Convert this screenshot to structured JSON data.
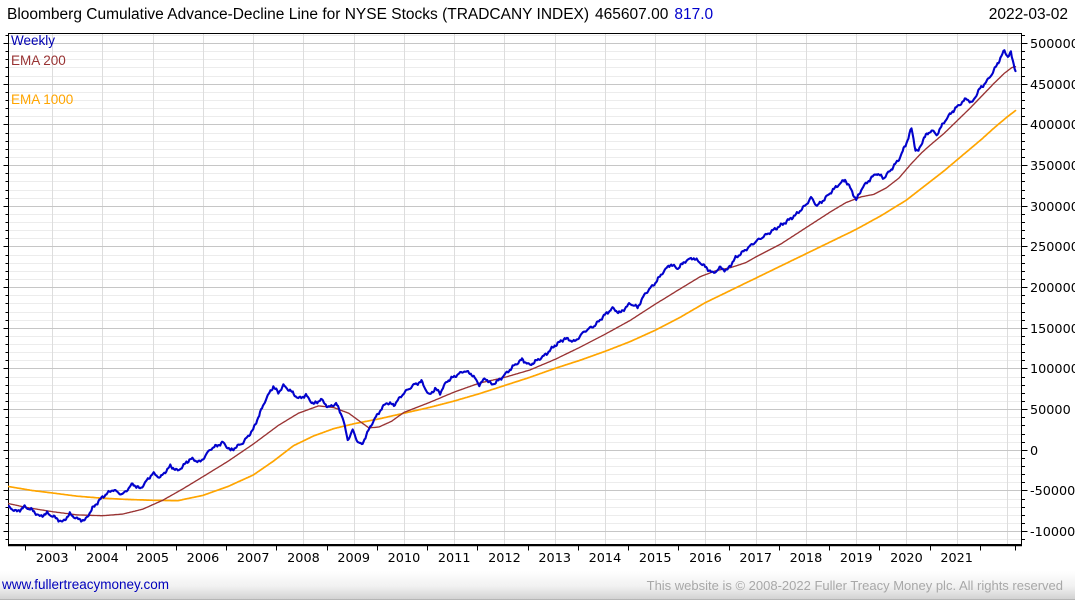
{
  "header": {
    "title": "Bloomberg Cumulative Advance-Decline Line for NYSE Stocks (TRADCANY INDEX)",
    "last_value": "465607.00",
    "change_value": "817.0",
    "date": "2022-03-02"
  },
  "legend": {
    "items": [
      {
        "label": "Weekly",
        "color": "#0000b2"
      },
      {
        "label": "EMA 200",
        "color": "#993333"
      },
      {
        "label": "EMA 1000",
        "color": "#ffa500"
      }
    ]
  },
  "footer": {
    "link": "www.fullertreacymoney.com",
    "copyright": "This website is © 2008-2022 Fuller Treacy Money plc. All rights reserved"
  },
  "chart_data": {
    "type": "line",
    "title": "Bloomberg Cumulative Advance-Decline Line for NYSE Stocks (TRADCANY INDEX)",
    "grid": true,
    "legend_position": "top-left",
    "x_axis": {
      "range": [
        2002.12,
        2022.3
      ],
      "tick_years": [
        2003,
        2004,
        2005,
        2006,
        2007,
        2008,
        2009,
        2010,
        2011,
        2012,
        2013,
        2014,
        2015,
        2016,
        2017,
        2018,
        2019,
        2020,
        2021
      ],
      "gridline_years": [
        2003,
        2004,
        2005,
        2006,
        2007,
        2008,
        2009,
        2010,
        2011,
        2012,
        2013,
        2014,
        2015,
        2016,
        2017,
        2018,
        2019,
        2020,
        2021,
        2022
      ]
    },
    "y_axis": {
      "range": [
        -117000,
        512400
      ],
      "major_step": 50000,
      "minor_step": 10000,
      "labels": [
        500000,
        450000,
        400000,
        350000,
        300000,
        250000,
        200000,
        150000,
        100000,
        50000,
        0,
        -50000,
        -100000
      ]
    },
    "colors": {
      "minor_grid": "#ececec",
      "major_grid": "#c6c6c6",
      "vert_grid": "#dddddd",
      "border": "#000000"
    },
    "series": [
      {
        "name": "EMA 1000",
        "color": "#ffa500",
        "width": 1.7,
        "jitter": 0,
        "points": [
          [
            2002.12,
            -45000
          ],
          [
            2002.6,
            -50000
          ],
          [
            2003.0,
            -53000
          ],
          [
            2003.5,
            -57000
          ],
          [
            2004.0,
            -59500
          ],
          [
            2004.5,
            -61000
          ],
          [
            2005.0,
            -62000
          ],
          [
            2005.5,
            -62500
          ],
          [
            2006.0,
            -56000
          ],
          [
            2006.5,
            -45000
          ],
          [
            2007.0,
            -31000
          ],
          [
            2007.4,
            -14000
          ],
          [
            2007.8,
            5000
          ],
          [
            2008.2,
            17000
          ],
          [
            2008.6,
            26000
          ],
          [
            2009.0,
            32000
          ],
          [
            2009.5,
            38000
          ],
          [
            2010.0,
            45000
          ],
          [
            2010.5,
            52000
          ],
          [
            2011.0,
            60000
          ],
          [
            2011.5,
            69000
          ],
          [
            2012.0,
            79000
          ],
          [
            2012.5,
            89000
          ],
          [
            2013.0,
            100000
          ],
          [
            2013.5,
            110000
          ],
          [
            2014.0,
            121000
          ],
          [
            2014.5,
            133000
          ],
          [
            2015.0,
            147000
          ],
          [
            2015.5,
            163000
          ],
          [
            2016.0,
            181000
          ],
          [
            2016.5,
            196000
          ],
          [
            2017.0,
            211000
          ],
          [
            2017.5,
            226000
          ],
          [
            2018.0,
            241000
          ],
          [
            2018.5,
            256000
          ],
          [
            2019.0,
            271000
          ],
          [
            2019.5,
            288000
          ],
          [
            2020.0,
            307000
          ],
          [
            2020.25,
            319000
          ],
          [
            2020.5,
            331000
          ],
          [
            2020.75,
            343000
          ],
          [
            2021.0,
            356000
          ],
          [
            2021.25,
            369000
          ],
          [
            2021.5,
            382000
          ],
          [
            2021.75,
            396000
          ],
          [
            2022.0,
            409000
          ],
          [
            2022.17,
            417000
          ]
        ]
      },
      {
        "name": "EMA 200",
        "color": "#993333",
        "width": 1.35,
        "jitter": 0,
        "points": [
          [
            2002.12,
            -66000
          ],
          [
            2002.5,
            -71000
          ],
          [
            2003.0,
            -76000
          ],
          [
            2003.5,
            -80000
          ],
          [
            2004.0,
            -81000
          ],
          [
            2004.4,
            -79000
          ],
          [
            2004.8,
            -73000
          ],
          [
            2005.2,
            -62000
          ],
          [
            2005.6,
            -48000
          ],
          [
            2006.0,
            -33000
          ],
          [
            2006.5,
            -14000
          ],
          [
            2007.0,
            7000
          ],
          [
            2007.5,
            30000
          ],
          [
            2007.9,
            45000
          ],
          [
            2008.3,
            54000
          ],
          [
            2008.6,
            52000
          ],
          [
            2008.9,
            45000
          ],
          [
            2009.1,
            36000
          ],
          [
            2009.3,
            27000
          ],
          [
            2009.5,
            28000
          ],
          [
            2009.75,
            35000
          ],
          [
            2010.0,
            46000
          ],
          [
            2010.5,
            58000
          ],
          [
            2011.0,
            71000
          ],
          [
            2011.5,
            82000
          ],
          [
            2012.0,
            89000
          ],
          [
            2012.5,
            98000
          ],
          [
            2013.0,
            111000
          ],
          [
            2013.5,
            126000
          ],
          [
            2014.0,
            142000
          ],
          [
            2014.5,
            159000
          ],
          [
            2015.0,
            179000
          ],
          [
            2015.5,
            198000
          ],
          [
            2015.9,
            213000
          ],
          [
            2016.2,
            220000
          ],
          [
            2016.5,
            224000
          ],
          [
            2016.8,
            230000
          ],
          [
            2017.0,
            237000
          ],
          [
            2017.5,
            253000
          ],
          [
            2018.0,
            273000
          ],
          [
            2018.5,
            293000
          ],
          [
            2018.8,
            304000
          ],
          [
            2019.1,
            311000
          ],
          [
            2019.35,
            314000
          ],
          [
            2019.6,
            322000
          ],
          [
            2019.85,
            334000
          ],
          [
            2020.1,
            352000
          ],
          [
            2020.3,
            365000
          ],
          [
            2020.5,
            376000
          ],
          [
            2020.75,
            389000
          ],
          [
            2021.0,
            404000
          ],
          [
            2021.25,
            419000
          ],
          [
            2021.5,
            435000
          ],
          [
            2021.75,
            451000
          ],
          [
            2021.95,
            463000
          ],
          [
            2022.1,
            470000
          ],
          [
            2022.17,
            471000
          ]
        ]
      },
      {
        "name": "Weekly",
        "color": "#0202cc",
        "width": 2.1,
        "jitter": 1,
        "points": [
          [
            2002.12,
            -70000
          ],
          [
            2002.3,
            -76000
          ],
          [
            2002.45,
            -70000
          ],
          [
            2002.6,
            -74000
          ],
          [
            2002.75,
            -82000
          ],
          [
            2002.9,
            -78000
          ],
          [
            2003.05,
            -83000
          ],
          [
            2003.2,
            -89000
          ],
          [
            2003.35,
            -79000
          ],
          [
            2003.5,
            -85000
          ],
          [
            2003.65,
            -87000
          ],
          [
            2003.8,
            -72000
          ],
          [
            2004.0,
            -58000
          ],
          [
            2004.2,
            -49000
          ],
          [
            2004.4,
            -55000
          ],
          [
            2004.6,
            -42000
          ],
          [
            2004.75,
            -48000
          ],
          [
            2005.0,
            -29000
          ],
          [
            2005.15,
            -34000
          ],
          [
            2005.35,
            -20000
          ],
          [
            2005.5,
            -26000
          ],
          [
            2005.75,
            -11000
          ],
          [
            2005.95,
            -15000
          ],
          [
            2006.15,
            1000
          ],
          [
            2006.4,
            9000
          ],
          [
            2006.55,
            -1000
          ],
          [
            2006.8,
            9000
          ],
          [
            2007.0,
            25000
          ],
          [
            2007.1,
            40000
          ],
          [
            2007.25,
            62000
          ],
          [
            2007.4,
            78000
          ],
          [
            2007.5,
            70000
          ],
          [
            2007.6,
            79000
          ],
          [
            2007.75,
            72000
          ],
          [
            2007.9,
            63000
          ],
          [
            2008.05,
            67000
          ],
          [
            2008.2,
            56000
          ],
          [
            2008.35,
            62000
          ],
          [
            2008.5,
            52000
          ],
          [
            2008.65,
            57000
          ],
          [
            2008.78,
            40000
          ],
          [
            2008.88,
            12000
          ],
          [
            2008.98,
            24000
          ],
          [
            2009.08,
            10000
          ],
          [
            2009.16,
            6000
          ],
          [
            2009.25,
            18000
          ],
          [
            2009.35,
            31000
          ],
          [
            2009.5,
            46000
          ],
          [
            2009.65,
            58000
          ],
          [
            2009.8,
            55000
          ],
          [
            2010.0,
            70000
          ],
          [
            2010.2,
            80000
          ],
          [
            2010.35,
            84000
          ],
          [
            2010.5,
            67000
          ],
          [
            2010.62,
            75000
          ],
          [
            2010.72,
            70000
          ],
          [
            2010.85,
            84000
          ],
          [
            2011.0,
            90000
          ],
          [
            2011.2,
            97000
          ],
          [
            2011.35,
            93000
          ],
          [
            2011.5,
            80000
          ],
          [
            2011.62,
            88000
          ],
          [
            2011.75,
            80000
          ],
          [
            2011.9,
            86000
          ],
          [
            2012.05,
            95000
          ],
          [
            2012.2,
            104000
          ],
          [
            2012.35,
            111000
          ],
          [
            2012.5,
            104000
          ],
          [
            2012.65,
            110000
          ],
          [
            2012.8,
            116000
          ],
          [
            2013.0,
            128000
          ],
          [
            2013.2,
            137000
          ],
          [
            2013.4,
            133000
          ],
          [
            2013.6,
            146000
          ],
          [
            2013.8,
            153000
          ],
          [
            2014.0,
            166000
          ],
          [
            2014.15,
            174000
          ],
          [
            2014.3,
            168000
          ],
          [
            2014.5,
            180000
          ],
          [
            2014.65,
            175000
          ],
          [
            2014.8,
            192000
          ],
          [
            2015.0,
            205000
          ],
          [
            2015.15,
            218000
          ],
          [
            2015.3,
            228000
          ],
          [
            2015.45,
            223000
          ],
          [
            2015.6,
            232000
          ],
          [
            2015.75,
            236000
          ],
          [
            2015.9,
            230000
          ],
          [
            2016.05,
            222000
          ],
          [
            2016.15,
            217000
          ],
          [
            2016.3,
            224000
          ],
          [
            2016.42,
            220000
          ],
          [
            2016.6,
            236000
          ],
          [
            2016.8,
            246000
          ],
          [
            2017.0,
            256000
          ],
          [
            2017.2,
            264000
          ],
          [
            2017.4,
            272000
          ],
          [
            2017.6,
            280000
          ],
          [
            2017.8,
            289000
          ],
          [
            2018.0,
            301000
          ],
          [
            2018.1,
            310000
          ],
          [
            2018.22,
            300000
          ],
          [
            2018.35,
            307000
          ],
          [
            2018.5,
            317000
          ],
          [
            2018.65,
            326000
          ],
          [
            2018.78,
            332000
          ],
          [
            2018.88,
            322000
          ],
          [
            2019.0,
            307000
          ],
          [
            2019.12,
            322000
          ],
          [
            2019.25,
            331000
          ],
          [
            2019.4,
            340000
          ],
          [
            2019.55,
            334000
          ],
          [
            2019.7,
            345000
          ],
          [
            2019.85,
            357000
          ],
          [
            2020.0,
            377000
          ],
          [
            2020.1,
            395000
          ],
          [
            2020.18,
            369000
          ],
          [
            2020.24,
            367000
          ],
          [
            2020.35,
            384000
          ],
          [
            2020.5,
            393000
          ],
          [
            2020.6,
            387000
          ],
          [
            2020.75,
            403000
          ],
          [
            2020.9,
            415000
          ],
          [
            2021.05,
            424000
          ],
          [
            2021.2,
            432000
          ],
          [
            2021.3,
            426000
          ],
          [
            2021.45,
            443000
          ],
          [
            2021.6,
            453000
          ],
          [
            2021.72,
            464000
          ],
          [
            2021.85,
            479000
          ],
          [
            2021.95,
            491000
          ],
          [
            2022.02,
            483000
          ],
          [
            2022.08,
            488000
          ],
          [
            2022.17,
            465607
          ]
        ]
      }
    ]
  }
}
